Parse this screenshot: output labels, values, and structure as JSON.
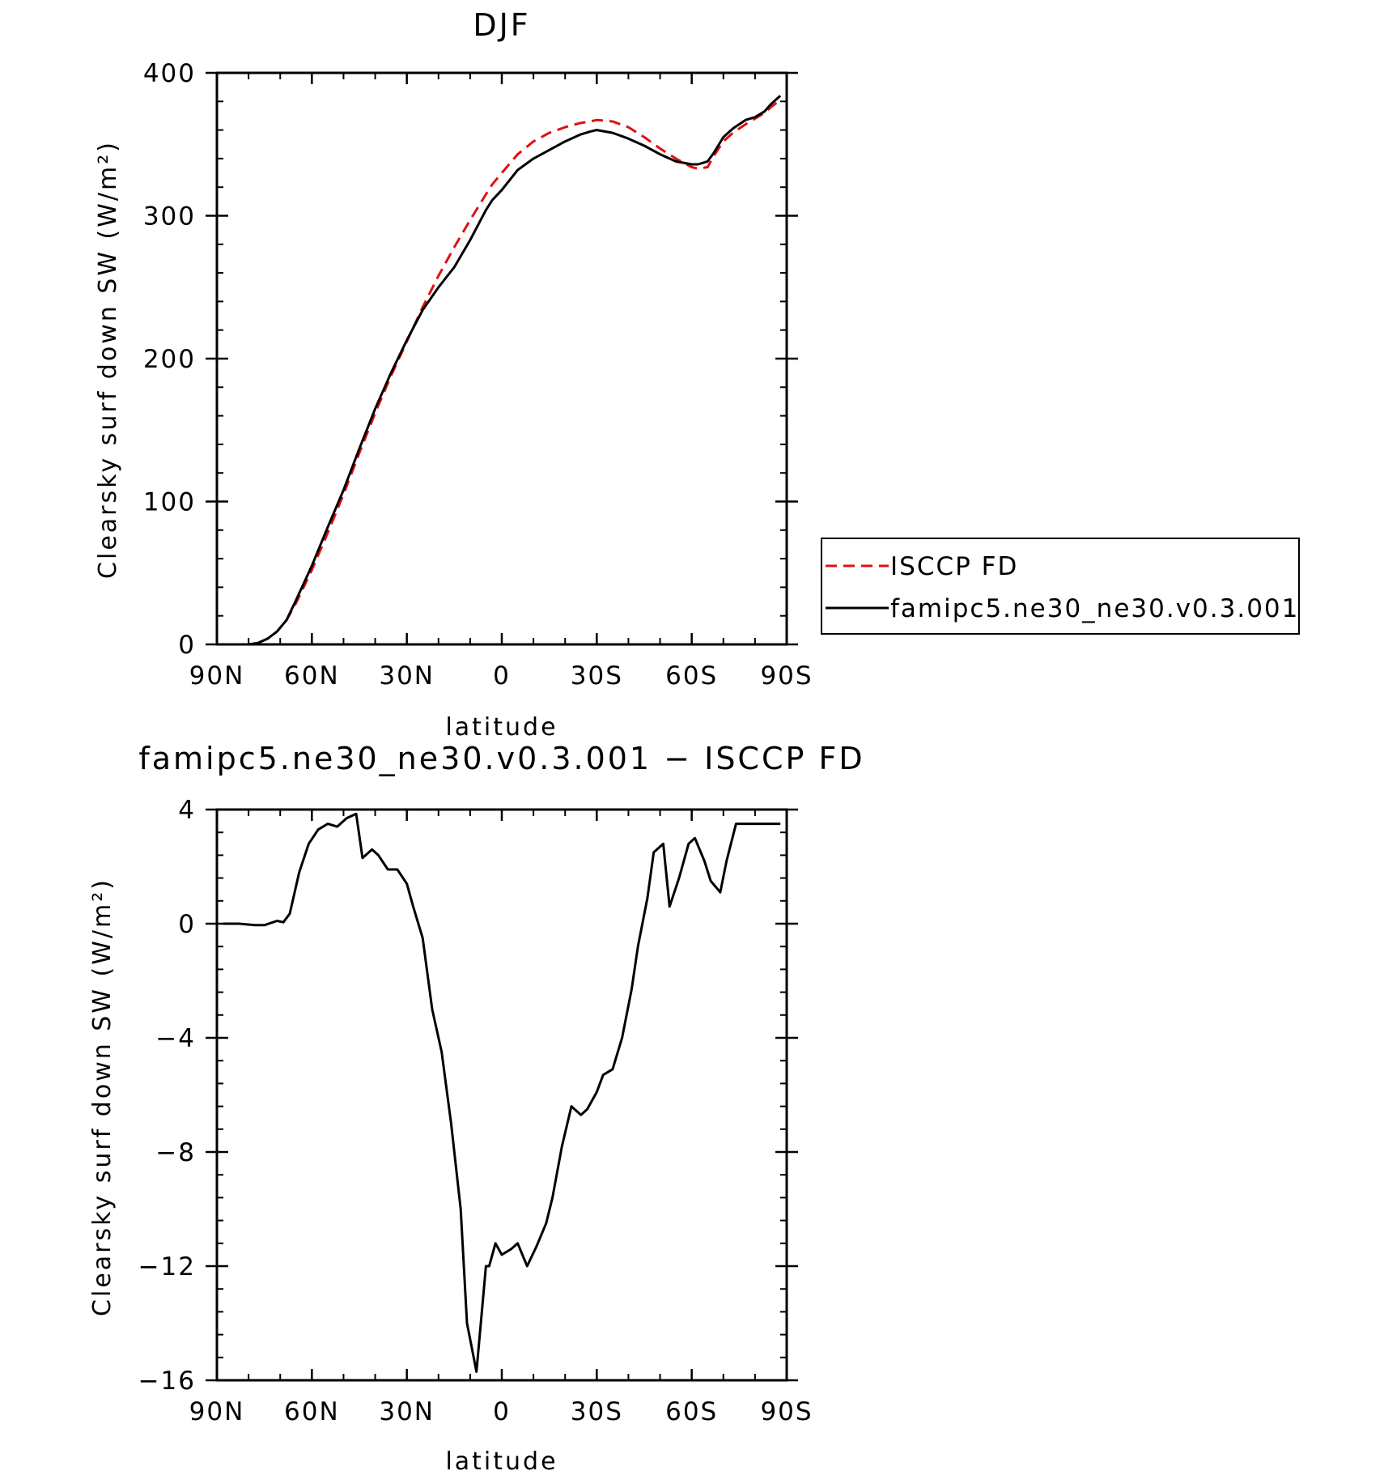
{
  "chart_data": [
    {
      "type": "line",
      "title": "DJF",
      "xlabel": "latitude",
      "ylabel": "Clearsky surf down SW (W/m²)",
      "xlim": [
        90,
        -90
      ],
      "ylim": [
        0,
        400
      ],
      "xticks": [
        90,
        60,
        30,
        0,
        -30,
        -60,
        -90
      ],
      "xtick_labels": [
        "90N",
        "60N",
        "30N",
        "0",
        "30S",
        "60S",
        "90S"
      ],
      "yticks": [
        0,
        100,
        200,
        300,
        400
      ],
      "ytick_labels": [
        "0",
        "100",
        "200",
        "300",
        "400"
      ],
      "x": [
        88,
        85,
        80,
        77,
        74,
        71,
        68,
        65,
        60,
        55,
        50,
        45,
        40,
        35,
        30,
        25,
        20,
        15,
        10,
        5,
        3,
        0,
        -5,
        -10,
        -15,
        -20,
        -25,
        -28,
        -30,
        -35,
        -40,
        -45,
        -50,
        -55,
        -60,
        -62,
        -65,
        -67,
        -70,
        -73,
        -77,
        -80,
        -83,
        -85,
        -88
      ],
      "series": [
        {
          "name": "ISCCP FD",
          "color": "#e01010",
          "dash": true,
          "values": [
            0,
            0,
            0,
            1,
            4,
            9,
            17,
            29,
            52,
            78,
            105,
            134,
            162,
            188,
            212,
            236,
            258,
            278,
            297,
            315,
            322,
            330,
            343,
            352,
            358,
            362,
            365,
            366,
            367,
            366,
            362,
            355,
            347,
            340,
            334,
            333,
            334,
            342,
            352,
            358,
            364,
            368,
            372,
            376,
            381
          ]
        },
        {
          "name": "famipc5.ne30_ne30.v0.3.001",
          "color": "#000000",
          "dash": false,
          "values": [
            0,
            0,
            0,
            1,
            4,
            9,
            17,
            31,
            55,
            82,
            108,
            137,
            165,
            190,
            213,
            234,
            250,
            264,
            283,
            304,
            311,
            318,
            332,
            340,
            346,
            352,
            357,
            359,
            360,
            358,
            354,
            349,
            343,
            338,
            336,
            336,
            338,
            344,
            355,
            361,
            367,
            369,
            373,
            378,
            384
          ]
        }
      ],
      "legend": "right"
    },
    {
      "type": "line",
      "title": "famipc5.ne30_ne30.v0.3.001 − ISCCP FD",
      "xlabel": "latitude",
      "ylabel": "Clearsky surf down SW (W/m²)",
      "xlim": [
        90,
        -90
      ],
      "ylim": [
        -16,
        4
      ],
      "xticks": [
        90,
        60,
        30,
        0,
        -30,
        -60,
        -90
      ],
      "xtick_labels": [
        "90N",
        "60N",
        "30N",
        "0",
        "30S",
        "60S",
        "90S"
      ],
      "yticks": [
        4,
        0,
        -4,
        -8,
        -12,
        -16
      ],
      "ytick_labels": [
        "4",
        "0",
        "−4",
        "−8",
        "−12",
        "−16"
      ],
      "x": [
        88,
        83,
        78,
        75,
        71,
        69,
        67,
        64,
        61,
        58,
        55,
        52,
        49,
        46,
        44,
        41,
        39,
        36,
        33,
        30,
        28,
        25,
        22,
        19,
        16,
        13,
        11,
        8,
        5,
        4,
        2,
        0,
        -3,
        -5,
        -8,
        -11,
        -14,
        -16,
        -19,
        -22,
        -25,
        -27,
        -30,
        -32,
        -35,
        -38,
        -41,
        -43,
        -46,
        -48,
        -51,
        -53,
        -56,
        -59,
        -61,
        -64,
        -66,
        -69,
        -71,
        -74,
        -76,
        -79,
        -81,
        -84,
        -86,
        -88
      ],
      "series": [
        {
          "name": "famipc5.ne30_ne30.v0.3.001",
          "color": "#000000",
          "values": [
            0,
            0,
            -0.05,
            -0.05,
            0.1,
            0.05,
            0.35,
            1.8,
            2.8,
            3.3,
            3.5,
            3.4,
            3.7,
            3.85,
            2.3,
            2.6,
            2.4,
            1.9,
            1.9,
            1.4,
            0.6,
            -0.5,
            -3.0,
            -4.5,
            -7.0,
            -10.0,
            -14.0,
            -15.7,
            -12.0,
            -12.0,
            -11.2,
            -11.6,
            -11.4,
            -11.2,
            -12.0,
            -11.3,
            -10.5,
            -9.6,
            -7.8,
            -6.4,
            -6.7,
            -6.5,
            -5.9,
            -5.3,
            -5.1,
            -4.0,
            -2.3,
            -0.8,
            0.9,
            2.5,
            2.8,
            0.6,
            1.6,
            2.8,
            3.0,
            2.2,
            1.5,
            1.1,
            2.2,
            3.5,
            3.5,
            3.5,
            3.5,
            3.5,
            3.5,
            3.5
          ]
        }
      ]
    }
  ]
}
